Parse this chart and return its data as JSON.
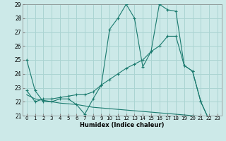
{
  "xlabel": "Humidex (Indice chaleur)",
  "bg_color": "#cce9e8",
  "grid_color": "#aad4d2",
  "line_color": "#1a7a6e",
  "xlim": [
    -0.5,
    23.5
  ],
  "ylim": [
    21,
    29
  ],
  "xticks": [
    0,
    1,
    2,
    3,
    4,
    5,
    6,
    7,
    8,
    9,
    10,
    11,
    12,
    13,
    14,
    15,
    16,
    17,
    18,
    19,
    20,
    21,
    22,
    23
  ],
  "yticks": [
    21,
    22,
    23,
    24,
    25,
    26,
    27,
    28,
    29
  ],
  "line1_x": [
    0,
    1,
    2,
    3,
    4,
    5,
    6,
    7,
    8,
    9,
    10,
    11,
    12,
    13,
    14,
    15,
    16,
    17,
    18,
    19,
    20,
    21,
    22,
    23
  ],
  "line1_y": [
    25.0,
    22.8,
    22.0,
    22.0,
    22.2,
    22.2,
    21.8,
    21.1,
    22.2,
    23.2,
    27.2,
    28.0,
    29.0,
    28.0,
    24.5,
    25.6,
    29.0,
    28.6,
    28.5,
    24.6,
    24.2,
    22.0,
    20.7,
    20.7
  ],
  "line2_x": [
    0,
    1,
    2,
    3,
    4,
    5,
    6,
    7,
    8,
    9,
    10,
    11,
    12,
    13,
    14,
    15,
    16,
    17,
    18,
    19,
    20,
    21,
    22,
    23
  ],
  "line2_y": [
    22.8,
    22.0,
    22.2,
    22.2,
    22.3,
    22.4,
    22.5,
    22.5,
    22.7,
    23.2,
    23.6,
    24.0,
    24.4,
    24.7,
    25.0,
    25.6,
    26.0,
    26.7,
    26.7,
    24.6,
    24.2,
    22.0,
    20.7,
    20.7
  ],
  "line3_x": [
    0,
    1,
    2,
    3,
    4,
    5,
    6,
    7,
    8,
    9,
    10,
    11,
    12,
    13,
    14,
    15,
    16,
    17,
    18,
    19,
    20,
    21,
    22,
    23
  ],
  "line3_y": [
    22.5,
    22.2,
    22.1,
    22.0,
    21.9,
    21.85,
    21.8,
    21.7,
    21.6,
    21.55,
    21.5,
    21.45,
    21.4,
    21.35,
    21.3,
    21.25,
    21.2,
    21.15,
    21.1,
    21.05,
    21.0,
    20.95,
    20.85,
    20.7
  ]
}
